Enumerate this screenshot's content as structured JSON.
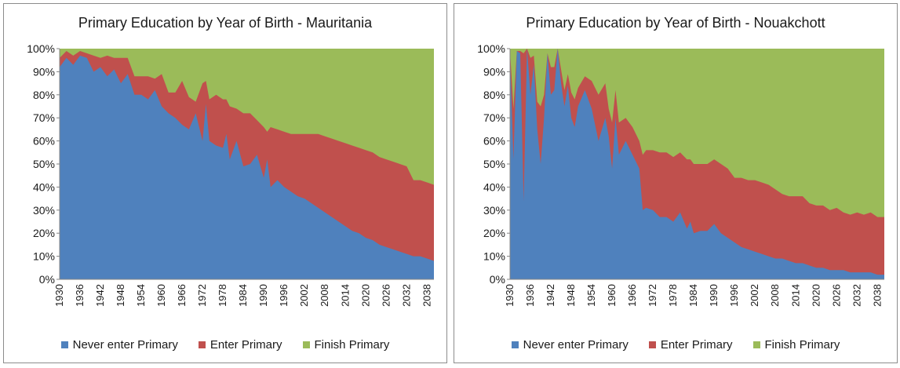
{
  "legend": {
    "never": "Never enter Primary",
    "enter": "Enter Primary",
    "finish": "Finish Primary"
  },
  "colors": {
    "never": "#4f81bd",
    "enter": "#c0504d",
    "finish": "#9bbb59"
  },
  "chart_data": [
    {
      "type": "area",
      "stacked": true,
      "title": "Primary Education by Year of Birth - Mauritania",
      "xlabel": "",
      "ylabel": "",
      "ylim": [
        0,
        100
      ],
      "y_ticks": [
        "0%",
        "10%",
        "20%",
        "30%",
        "40%",
        "50%",
        "60%",
        "70%",
        "80%",
        "90%",
        "100%"
      ],
      "x_range": [
        1930,
        2040
      ],
      "x_ticks": [
        "1930",
        "1936",
        "1942",
        "1948",
        "1954",
        "1960",
        "1966",
        "1972",
        "1978",
        "1984",
        "1990",
        "1996",
        "2002",
        "2008",
        "2014",
        "2020",
        "2026",
        "2032",
        "2038"
      ],
      "series": [
        {
          "name": "Never enter Primary",
          "x": [
            1930,
            1932,
            1934,
            1936,
            1938,
            1940,
            1942,
            1944,
            1946,
            1948,
            1950,
            1952,
            1954,
            1956,
            1958,
            1960,
            1962,
            1964,
            1966,
            1968,
            1970,
            1972,
            1973,
            1974,
            1976,
            1978,
            1979,
            1980,
            1982,
            1984,
            1986,
            1988,
            1990,
            1991,
            1992,
            1994,
            1996,
            1998,
            2000,
            2002,
            2004,
            2006,
            2008,
            2010,
            2012,
            2014,
            2016,
            2018,
            2020,
            2022,
            2024,
            2026,
            2028,
            2030,
            2032,
            2034,
            2036,
            2038,
            2040
          ],
          "values": [
            92,
            96,
            93,
            97,
            96,
            90,
            92,
            88,
            91,
            85,
            89,
            80,
            80,
            78,
            82,
            75,
            72,
            70,
            67,
            65,
            72,
            60,
            76,
            60,
            58,
            57,
            63,
            52,
            60,
            49,
            50,
            54,
            44,
            52,
            40,
            43,
            40,
            38,
            36,
            35,
            33,
            31,
            29,
            27,
            25,
            23,
            21,
            20,
            18,
            17,
            15,
            14,
            13,
            12,
            11,
            10,
            10,
            9,
            8
          ]
        },
        {
          "name": "Enter Primary",
          "x": [
            1930,
            1932,
            1934,
            1936,
            1938,
            1940,
            1942,
            1944,
            1946,
            1948,
            1950,
            1952,
            1954,
            1956,
            1958,
            1960,
            1962,
            1964,
            1966,
            1968,
            1970,
            1972,
            1973,
            1974,
            1976,
            1978,
            1979,
            1980,
            1982,
            1984,
            1986,
            1988,
            1990,
            1991,
            1992,
            1994,
            1996,
            1998,
            2000,
            2002,
            2004,
            2006,
            2008,
            2010,
            2012,
            2014,
            2016,
            2018,
            2020,
            2022,
            2024,
            2026,
            2028,
            2030,
            2032,
            2034,
            2036,
            2038,
            2040
          ],
          "values": [
            4,
            3,
            4,
            2,
            2,
            7,
            4,
            9,
            5,
            11,
            7,
            8,
            8,
            10,
            5,
            14,
            9,
            11,
            19,
            14,
            5,
            25,
            10,
            18,
            22,
            21,
            15,
            23,
            14,
            23,
            22,
            15,
            22,
            12,
            26,
            22,
            24,
            25,
            27,
            28,
            30,
            32,
            33,
            34,
            35,
            36,
            37,
            37,
            38,
            38,
            38,
            38,
            38,
            38,
            38,
            33,
            33,
            33,
            33
          ]
        }
      ]
    },
    {
      "type": "area",
      "stacked": true,
      "title": "Primary Education by Year of Birth - Nouakchott",
      "xlabel": "",
      "ylabel": "",
      "ylim": [
        0,
        100
      ],
      "y_ticks": [
        "0%",
        "10%",
        "20%",
        "30%",
        "40%",
        "50%",
        "60%",
        "70%",
        "80%",
        "90%",
        "100%"
      ],
      "x_range": [
        1930,
        2040
      ],
      "x_ticks": [
        "1930",
        "1936",
        "1942",
        "1948",
        "1954",
        "1960",
        "1966",
        "1972",
        "1978",
        "1984",
        "1990",
        "1996",
        "2002",
        "2008",
        "2014",
        "2020",
        "2026",
        "2032",
        "2038"
      ],
      "series": [
        {
          "name": "Never enter Primary",
          "x": [
            1930,
            1931,
            1932,
            1933,
            1934,
            1935,
            1936,
            1937,
            1938,
            1939,
            1940,
            1941,
            1942,
            1943,
            1944,
            1945,
            1946,
            1947,
            1948,
            1949,
            1950,
            1952,
            1954,
            1956,
            1958,
            1959,
            1960,
            1961,
            1962,
            1964,
            1966,
            1968,
            1969,
            1970,
            1972,
            1974,
            1976,
            1978,
            1980,
            1982,
            1983,
            1984,
            1986,
            1988,
            1990,
            1992,
            1994,
            1996,
            1998,
            2000,
            2002,
            2004,
            2006,
            2008,
            2010,
            2012,
            2014,
            2016,
            2018,
            2020,
            2022,
            2024,
            2026,
            2028,
            2030,
            2032,
            2034,
            2036,
            2038,
            2040
          ],
          "values": [
            97,
            52,
            99,
            98,
            34,
            100,
            80,
            93,
            65,
            50,
            70,
            98,
            80,
            82,
            100,
            85,
            75,
            84,
            70,
            66,
            75,
            82,
            74,
            60,
            70,
            62,
            48,
            70,
            54,
            60,
            54,
            48,
            30,
            31,
            30,
            27,
            27,
            25,
            29,
            22,
            25,
            20,
            21,
            21,
            24,
            20,
            18,
            16,
            14,
            13,
            12,
            11,
            10,
            9,
            9,
            8,
            7,
            7,
            6,
            5,
            5,
            4,
            4,
            4,
            3,
            3,
            3,
            3,
            2,
            2
          ]
        },
        {
          "name": "Enter Primary",
          "x": [
            1930,
            1931,
            1932,
            1933,
            1934,
            1935,
            1936,
            1937,
            1938,
            1939,
            1940,
            1941,
            1942,
            1943,
            1944,
            1945,
            1946,
            1947,
            1948,
            1949,
            1950,
            1952,
            1954,
            1956,
            1958,
            1959,
            1960,
            1961,
            1962,
            1964,
            1966,
            1968,
            1969,
            1970,
            1972,
            1974,
            1976,
            1978,
            1980,
            1982,
            1983,
            1984,
            1986,
            1988,
            1990,
            1992,
            1994,
            1996,
            1998,
            2000,
            2002,
            2004,
            2006,
            2008,
            2010,
            2012,
            2014,
            2016,
            2018,
            2020,
            2022,
            2024,
            2026,
            2028,
            2030,
            2032,
            2034,
            2036,
            2038,
            2040
          ],
          "values": [
            2,
            22,
            0,
            1,
            64,
            0,
            16,
            4,
            12,
            25,
            10,
            0,
            12,
            10,
            0,
            6,
            7,
            5,
            11,
            12,
            8,
            6,
            12,
            20,
            15,
            12,
            20,
            12,
            14,
            10,
            12,
            12,
            24,
            25,
            26,
            28,
            28,
            28,
            26,
            30,
            27,
            30,
            29,
            29,
            28,
            30,
            30,
            28,
            30,
            30,
            31,
            31,
            31,
            30,
            28,
            28,
            29,
            29,
            27,
            27,
            27,
            26,
            27,
            25,
            25,
            26,
            25,
            26,
            25,
            25
          ]
        }
      ]
    }
  ]
}
